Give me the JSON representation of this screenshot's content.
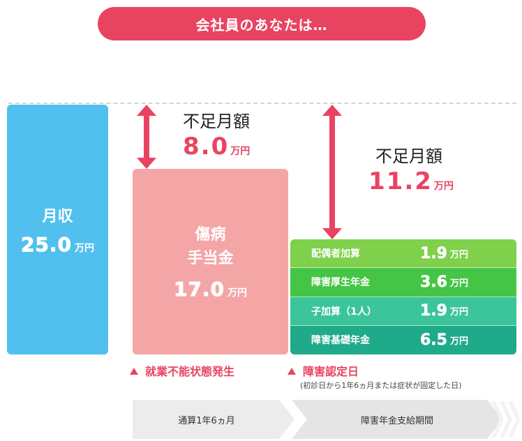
{
  "header": {
    "title": "会社員のあなたは…"
  },
  "salary": {
    "label": "月収",
    "amount": "25.0",
    "unit": "万円"
  },
  "sickness": {
    "label_line1": "傷病",
    "label_line2": "手当金",
    "amount": "17.0",
    "unit": "万円"
  },
  "shortfall_1": {
    "label": "不足月額",
    "amount": "8.0",
    "unit": "万円"
  },
  "shortfall_2": {
    "label": "不足月額",
    "amount": "11.2",
    "unit": "万円"
  },
  "pension": {
    "rows": [
      {
        "label": "配偶者加算",
        "amount": "1.9",
        "unit": "万円",
        "color": "#7fd04b"
      },
      {
        "label": "障害厚生年金",
        "amount": "3.6",
        "unit": "万円",
        "color": "#45c545"
      },
      {
        "label": "子加算（1人）",
        "amount": "1.9",
        "unit": "万円",
        "color": "#3cc49a"
      },
      {
        "label": "障害基礎年金",
        "amount": "6.5",
        "unit": "万円",
        "color": "#1faa8a"
      }
    ]
  },
  "events": {
    "event1": "就業不能状態発生",
    "event2": "障害認定日",
    "event2_note": "(初診日から1年6ヵ月または症状が固定した日)"
  },
  "timeline": {
    "period1": "通算1年6ヵ月",
    "period2": "障害年金支給期間"
  },
  "colors": {
    "accent": "#e84461",
    "salary": "#51c0ef",
    "sickness": "#f3a6a5"
  }
}
